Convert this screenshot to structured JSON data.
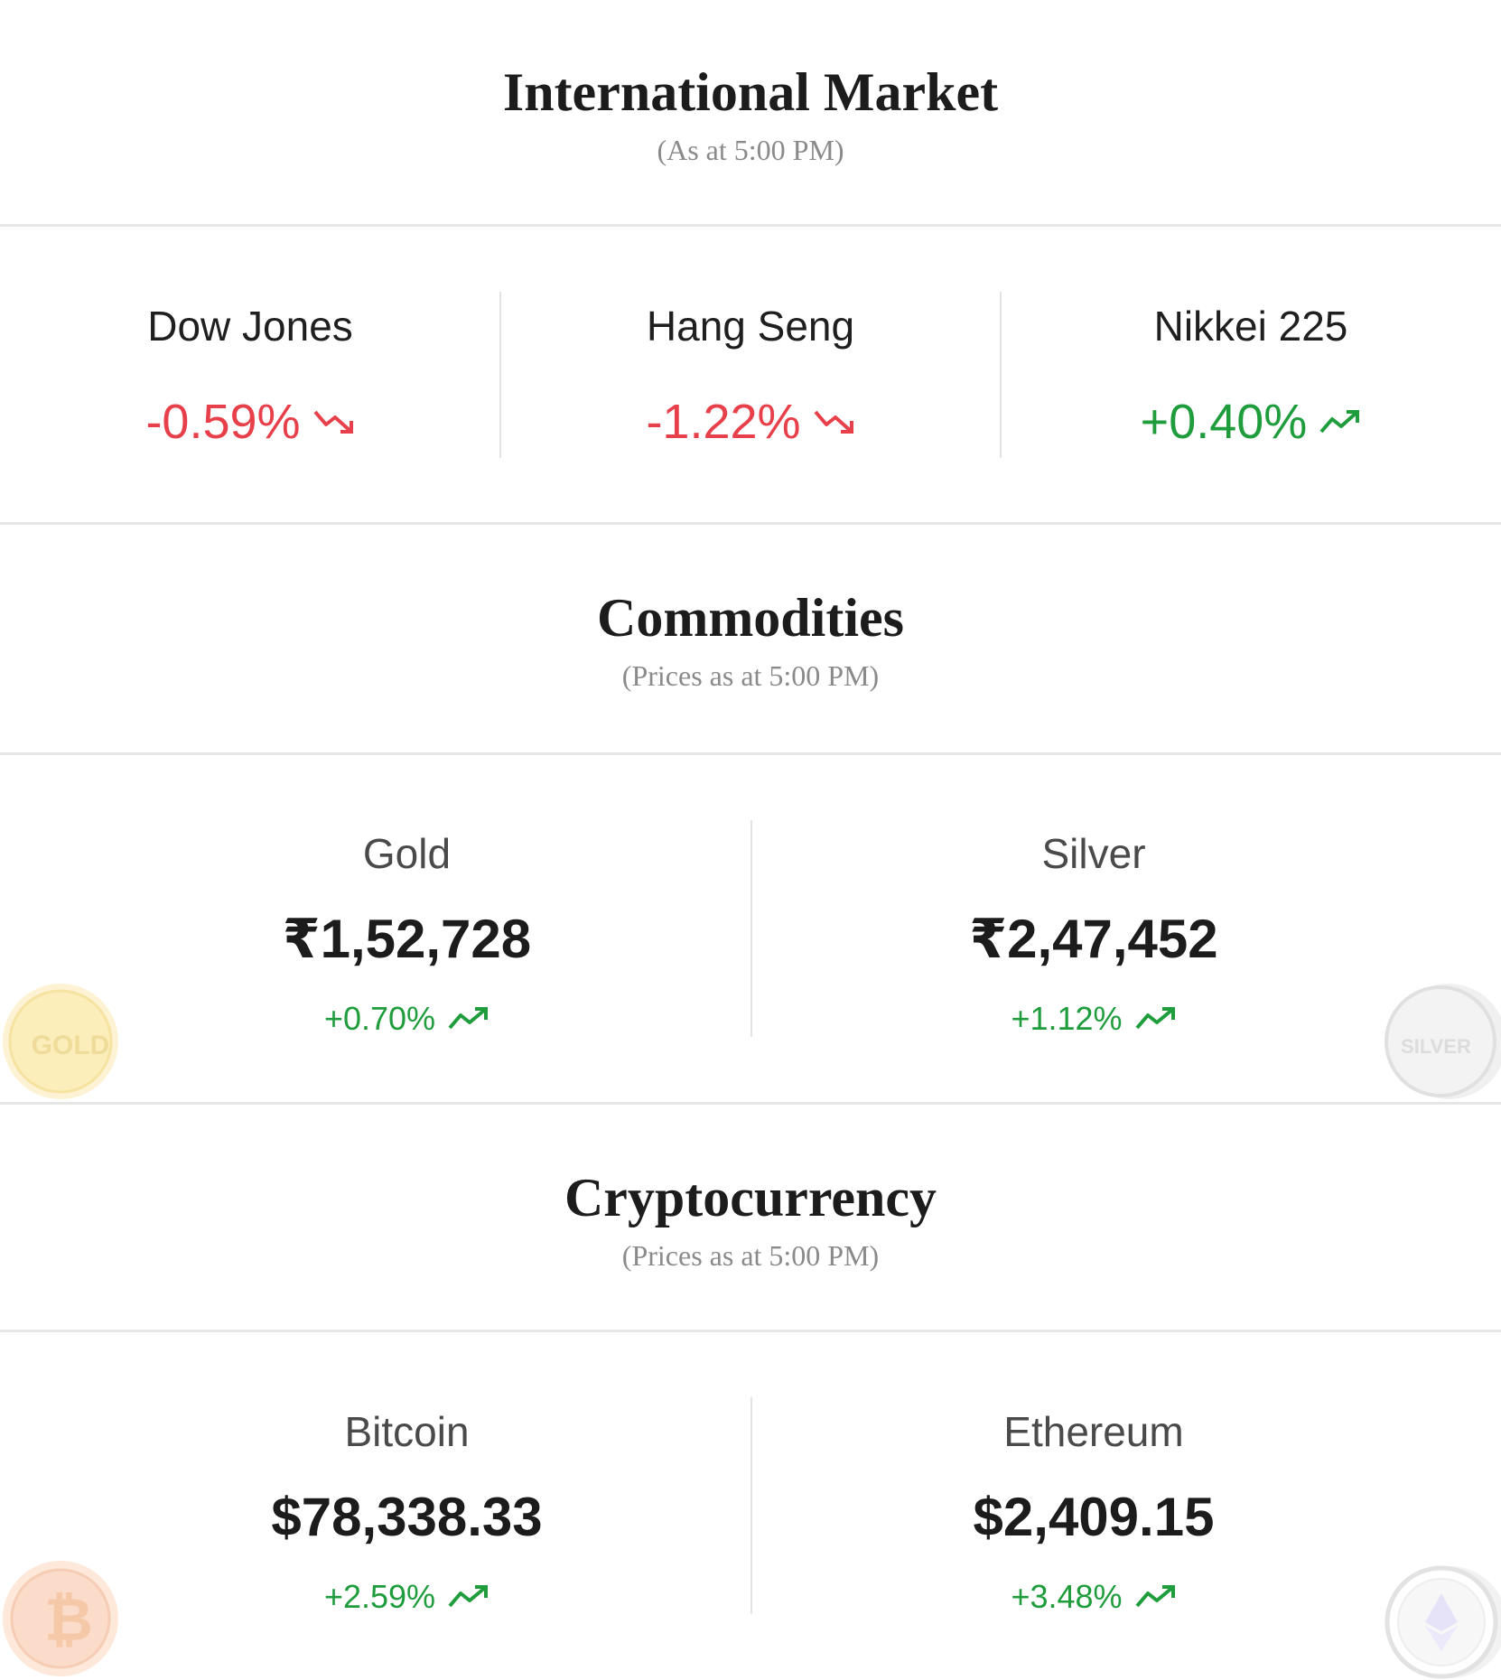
{
  "international": {
    "title": "International Market",
    "subtitle": "(As at 5:00 PM)",
    "indices": [
      {
        "name": "Dow Jones",
        "change": "-0.59%",
        "direction": "down"
      },
      {
        "name": "Hang Seng",
        "change": "-1.22%",
        "direction": "down"
      },
      {
        "name": "Nikkei 225",
        "change": "+0.40%",
        "direction": "up"
      }
    ]
  },
  "commodities": {
    "title": "Commodities",
    "subtitle": "(Prices as at 5:00 PM)",
    "items": [
      {
        "name": "Gold",
        "price": "₹1,52,728",
        "change": "+0.70%",
        "direction": "up",
        "coin_label": "GOLD"
      },
      {
        "name": "Silver",
        "price": "₹2,47,452",
        "change": "+1.12%",
        "direction": "up",
        "coin_label": "SILVER"
      }
    ]
  },
  "crypto": {
    "title": "Cryptocurrency",
    "subtitle": "(Prices as at 5:00 PM)",
    "items": [
      {
        "name": "Bitcoin",
        "price": "$78,338.33",
        "change": "+2.59%",
        "direction": "up",
        "coin_label": "₿"
      },
      {
        "name": "Ethereum",
        "price": "$2,409.15",
        "change": "+3.48%",
        "direction": "up"
      }
    ]
  },
  "colors": {
    "down": "#e8404a",
    "up": "#1f9d3d",
    "divider": "#e6e6e6",
    "gold_coin": "#f8e6a6",
    "silver_coin": "#e4e4e4",
    "bitcoin_coin": "#f6c9a8"
  },
  "icons": {
    "down": "trend-down-icon",
    "up": "trend-up-icon"
  }
}
